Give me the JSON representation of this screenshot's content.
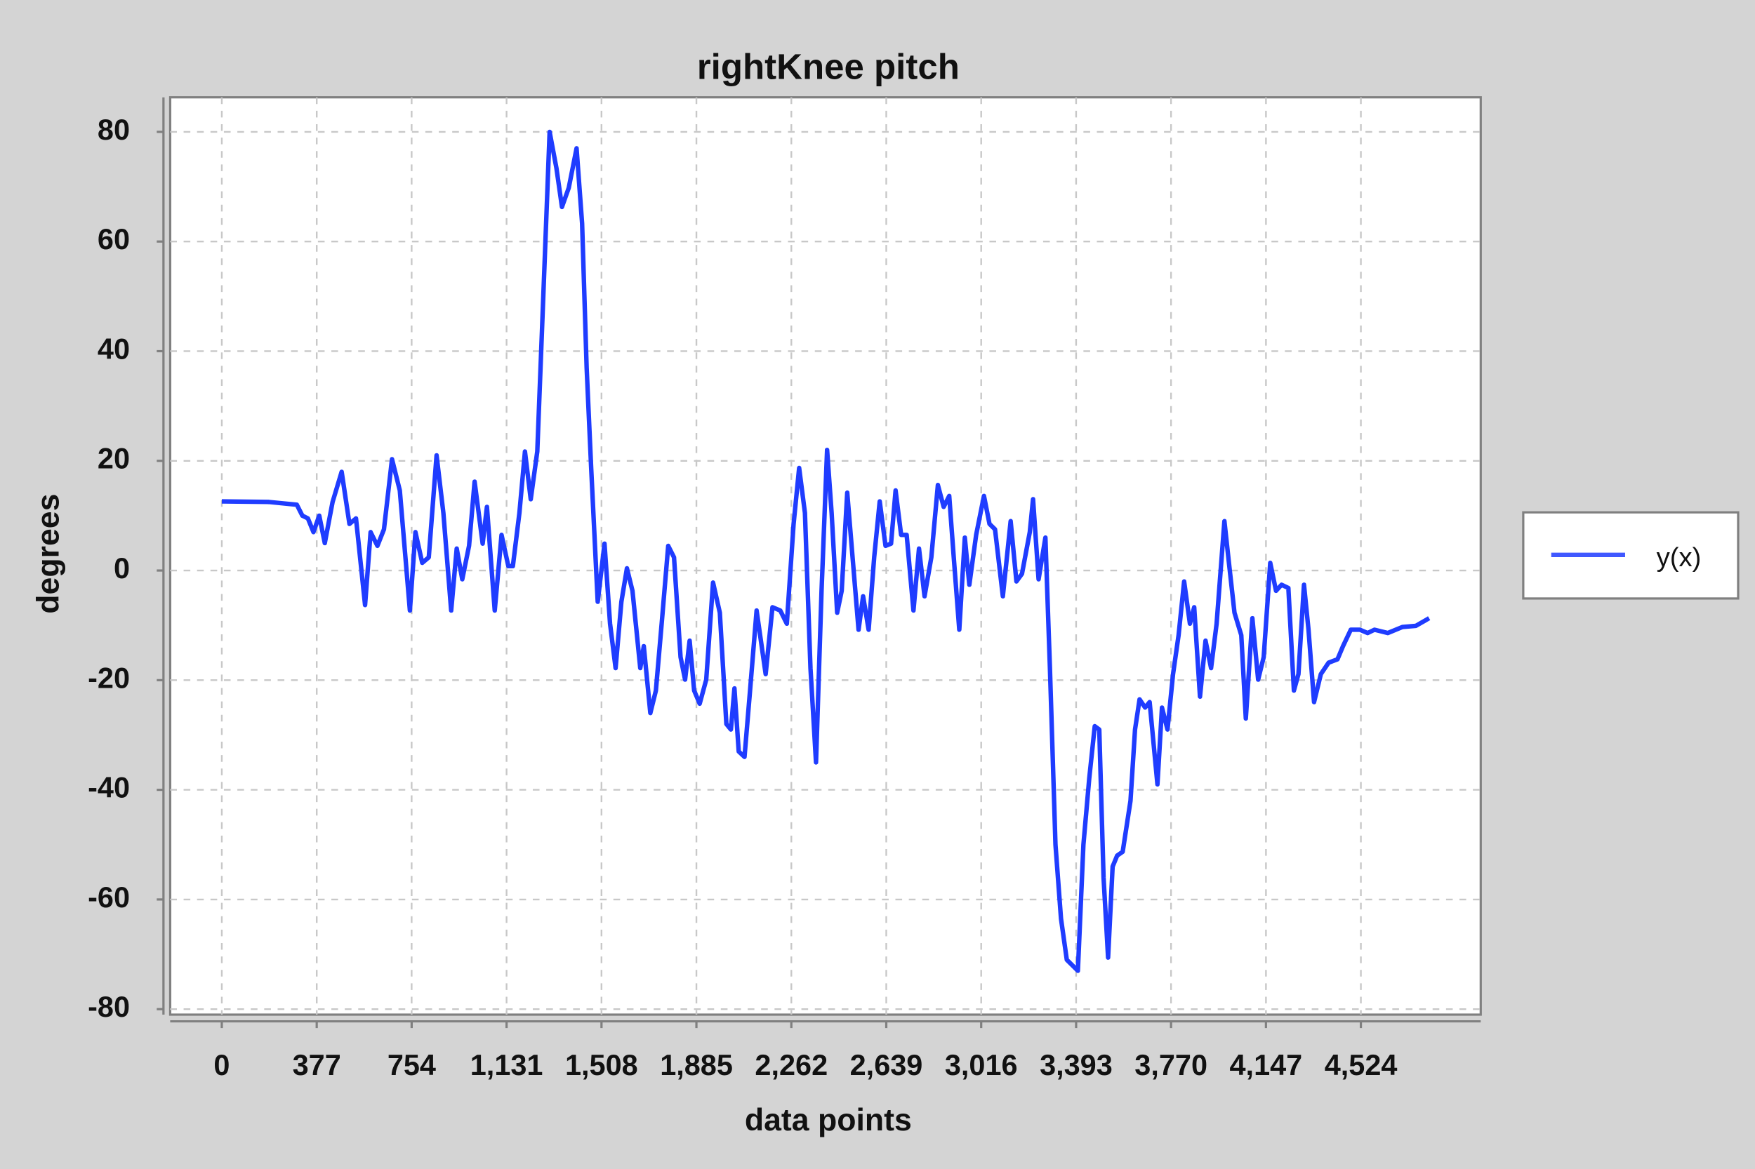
{
  "chart_data": {
    "type": "line",
    "title": "rightKnee pitch",
    "x_label": "data points",
    "y_label": "degrees",
    "x": [
      0,
      187,
      298,
      320,
      342,
      364,
      387,
      409,
      440,
      476,
      507,
      533,
      569,
      591,
      618,
      644,
      676,
      707,
      747,
      769,
      796,
      822,
      853,
      880,
      911,
      933,
      955,
      982,
      1004,
      1036,
      1053,
      1084,
      1111,
      1138,
      1156,
      1182,
      1204,
      1227,
      1253,
      1271,
      1302,
      1329,
      1351,
      1378,
      1409,
      1431,
      1449,
      1467,
      1493,
      1520,
      1542,
      1564,
      1587,
      1609,
      1631,
      1662,
      1676,
      1702,
      1724,
      1747,
      1773,
      1796,
      1822,
      1840,
      1858,
      1876,
      1898,
      1924,
      1951,
      1978,
      2004,
      2022,
      2036,
      2053,
      2076,
      2098,
      2124,
      2160,
      2187,
      2218,
      2244,
      2271,
      2293,
      2316,
      2338,
      2360,
      2382,
      2404,
      2422,
      2444,
      2462,
      2484,
      2507,
      2529,
      2547,
      2569,
      2591,
      2613,
      2636,
      2658,
      2676,
      2698,
      2720,
      2747,
      2769,
      2791,
      2818,
      2844,
      2867,
      2889,
      2907,
      2929,
      2951,
      2969,
      2996,
      3027,
      3049,
      3071,
      3102,
      3133,
      3156,
      3178,
      3209,
      3222,
      3244,
      3271,
      3289,
      3311,
      3333,
      3356,
      3400,
      3422,
      3445,
      3467,
      3485,
      3502,
      3520,
      3538,
      3556,
      3578,
      3609,
      3627,
      3645,
      3667,
      3685,
      3716,
      3734,
      3756,
      3778,
      3800,
      3822,
      3845,
      3862,
      3885,
      3907,
      3929,
      3951,
      3982,
      4000,
      4022,
      4049,
      4067,
      4093,
      4116,
      4138,
      4164,
      4187,
      4209,
      4236,
      4258,
      4276,
      4298,
      4316,
      4338,
      4365,
      4396,
      4431,
      4453,
      4484,
      4520,
      4551,
      4578,
      4631,
      4689,
      4742,
      4795
    ],
    "series": [
      {
        "name": "y(x)",
        "color": "#1f3cff",
        "values": [
          12.6,
          12.5,
          12,
          10,
          9.5,
          7,
          10,
          5,
          12.5,
          18,
          8.5,
          9.5,
          -6.3,
          7,
          4.5,
          7.5,
          20.3,
          14.6,
          -7.3,
          7,
          1.4,
          2.4,
          21,
          10.5,
          -7.3,
          4,
          -1.6,
          4.5,
          16.2,
          4.9,
          11.6,
          -7.3,
          6.5,
          0.8,
          0.8,
          10.5,
          21.7,
          13,
          21.7,
          43,
          80,
          73.4,
          66.3,
          69.8,
          77,
          63.3,
          37,
          18.7,
          -5.7,
          4.9,
          -9.7,
          -17.8,
          -5.7,
          0.4,
          -3.7,
          -17.8,
          -13.8,
          -26,
          -21.9,
          -9.7,
          4.5,
          2.4,
          -15.8,
          -19.9,
          -12.8,
          -21.9,
          -24.3,
          -19.9,
          -2.2,
          -7.7,
          -28,
          -29,
          -21.5,
          -33,
          -34,
          -21.9,
          -7.3,
          -18.9,
          -6.7,
          -7.3,
          -9.7,
          8.5,
          18.7,
          10.5,
          -17.8,
          -35,
          -3.7,
          22,
          10.5,
          -7.7,
          -3.7,
          14.2,
          1.4,
          -10.8,
          -4.7,
          -10.8,
          2.4,
          12.6,
          4.5,
          4.9,
          14.6,
          6.5,
          6.5,
          -7.3,
          4,
          -4.7,
          2.4,
          15.6,
          11.6,
          13.6,
          2.4,
          -10.8,
          6,
          -2.6,
          6.5,
          13.6,
          8.5,
          7.5,
          -4.7,
          9,
          -2,
          -0.6,
          7,
          13,
          -1.6,
          6,
          -17.8,
          -50,
          -63.5,
          -71,
          -73,
          -50,
          -38,
          -28.4,
          -29,
          -56,
          -70.6,
          -54,
          -52,
          -51.3,
          -42,
          -29,
          -23.5,
          -25,
          -24,
          -39,
          -25,
          -29,
          -18.9,
          -11.8,
          -2,
          -9.7,
          -6.7,
          -23,
          -12.8,
          -17.8,
          -9.7,
          9,
          1.4,
          -7.7,
          -11.8,
          -27,
          -8.7,
          -19.9,
          -15.8,
          1.4,
          -3.7,
          -2.6,
          -3.2,
          -21.9,
          -18.9,
          -2.6,
          -10.8,
          -24,
          -18.9,
          -16.8,
          -16.2,
          -13.8,
          -10.8,
          -10.8,
          -11.4,
          -10.8,
          -11.4,
          -10.3,
          -10.1,
          -8.7
        ]
      }
    ],
    "xlim": [
      -205,
      5000
    ],
    "ylim": [
      -81,
      86.3
    ],
    "xticks": [
      0,
      377,
      754,
      {
        "value": 1131,
        "label": "1,131"
      },
      {
        "value": 1508,
        "label": "1,508"
      },
      {
        "value": 1885,
        "label": "1,885"
      },
      {
        "value": 2262,
        "label": "2,262"
      },
      {
        "value": 2639,
        "label": "2,639"
      },
      {
        "value": 3016,
        "label": "3,016"
      },
      {
        "value": 3393,
        "label": "3,393"
      },
      {
        "value": 3770,
        "label": "3,770"
      },
      {
        "value": 4147,
        "label": "4,147"
      },
      {
        "value": 4524,
        "label": "4,524"
      }
    ],
    "yticks": [
      -80,
      -60,
      -40,
      -20,
      0,
      20,
      40,
      60,
      80
    ],
    "grid": true,
    "legend": "right"
  }
}
